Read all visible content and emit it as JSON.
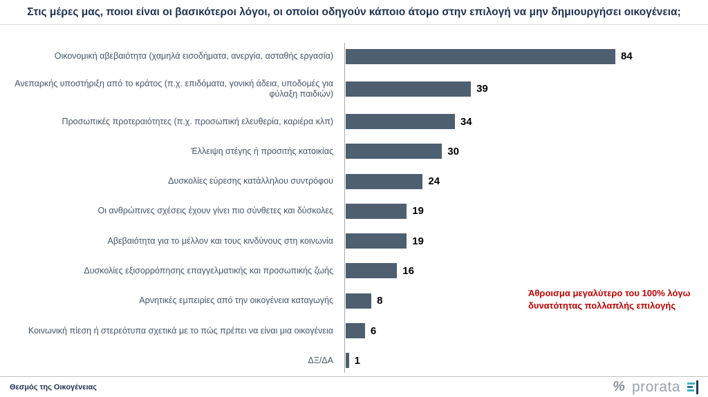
{
  "title": "Στις μέρες μας, ποιοι είναι οι βασικότεροι λόγοι, οι οποίοι οδηγούν κάποιο άτομο στην επιλογή να μην δημιουργήσει οικογένεια;",
  "chart_data": {
    "type": "bar",
    "orientation": "horizontal",
    "title": "Στις μέρες μας, ποιοι είναι οι βασικότεροι λόγοι, οι οποίοι οδηγούν κάποιο άτομο στην επιλογή να μην δημιουργήσει οικογένεια;",
    "categories": [
      "Οικονομική αβεβαιότητα (χαμηλά εισοδήματα, ανεργία, ασταθής εργασία)",
      "Ανεπαρκής υποστήριξη από το κράτος (π.χ. επιδόματα, γονική άδεια, υποδομές για φύλαξη παιδιών)",
      "Προσωπικές προτεραιότητες (π.χ. προσωπική ελευθερία, καριέρα κλπ)",
      "Έλλειψη στέγης ή προσιτής κατοικίας",
      "Δυσκολίες εύρεσης κατάλληλου συντρόφου",
      "Οι ανθρώπινες σχέσεις έχουν γίνει πιο σύνθετες και δύσκολες",
      "Αβεβαιότητα για το μέλλον και τους κινδύνους στη κοινωνία",
      "Δυσκολίες εξισορρόπησης επαγγελματικής και προσωπικής ζωής",
      "Αρνητικές εμπειρίες από την οικογένεια καταγωγής",
      "Κοινωνική πίεση ή στερεότυπα σχετικά με το πώς πρέπει να είναι μια οικογένεια",
      "ΔΞ/ΔΑ"
    ],
    "values": [
      84,
      39,
      34,
      30,
      24,
      19,
      19,
      16,
      8,
      6,
      1
    ],
    "xlim": [
      0,
      90
    ],
    "grid": false,
    "legend": false,
    "annotation": "Άθροισμα μεγαλύτερο του 100% λόγω δυνατότητας πολλαπλής επιλογής",
    "bar_color": "#4e5f70"
  },
  "footer": {
    "source_label": "Θεσμός της Οικογένειας",
    "percent_mark": "%",
    "brand": "prorata"
  },
  "colors": {
    "title": "#1f3151",
    "bar": "#4e5f70",
    "category_label": "#44546a",
    "value_label": "#000000",
    "annotation": "#c00000",
    "axis_line": "#a6a6a6"
  }
}
